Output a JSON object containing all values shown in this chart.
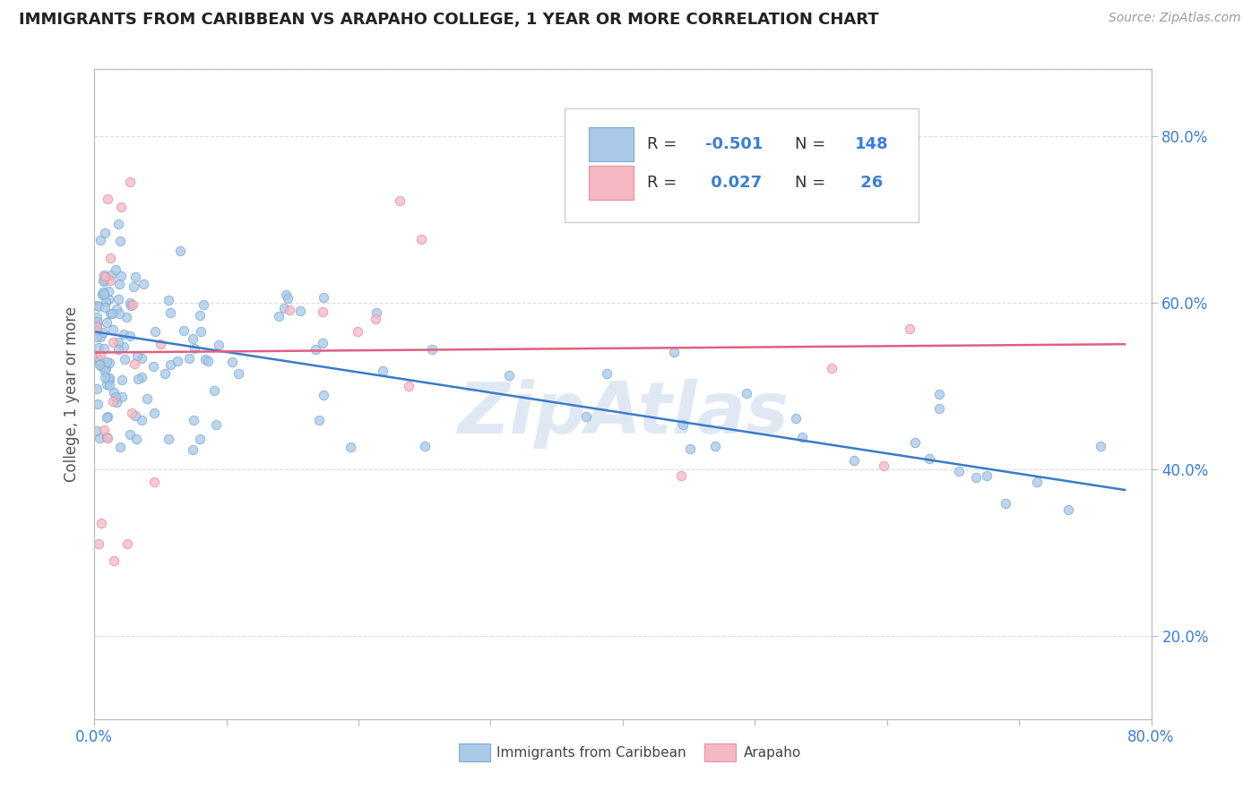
{
  "title": "IMMIGRANTS FROM CARIBBEAN VS ARAPAHO COLLEGE, 1 YEAR OR MORE CORRELATION CHART",
  "source_text": "Source: ZipAtlas.com",
  "ylabel": "College, 1 year or more",
  "xlim": [
    0.0,
    0.8
  ],
  "ylim": [
    0.1,
    0.88
  ],
  "ytick_positions": [
    0.2,
    0.4,
    0.6,
    0.8
  ],
  "ytick_labels": [
    "20.0%",
    "40.0%",
    "60.0%",
    "80.0%"
  ],
  "blue_fill": "#aac8e8",
  "blue_edge": "#7aaed4",
  "pink_fill": "#f5b8c4",
  "pink_edge": "#e890a0",
  "blue_line_color": "#3a7bc8",
  "pink_line_color": "#e06080",
  "legend_text_color": "#3a7fd5",
  "R_blue": -0.501,
  "N_blue": 148,
  "R_pink": 0.027,
  "N_pink": 26,
  "watermark": "ZipAtlas",
  "watermark_color": "#c8d8ea",
  "title_color": "#222222",
  "axis_color": "#bbbbbb",
  "grid_color": "#dddddd",
  "blue_line": {
    "x0": 0.0,
    "x1": 0.78,
    "y0": 0.565,
    "y1": 0.375
  },
  "pink_line": {
    "x0": 0.0,
    "x1": 0.78,
    "y0": 0.54,
    "y1": 0.55
  }
}
